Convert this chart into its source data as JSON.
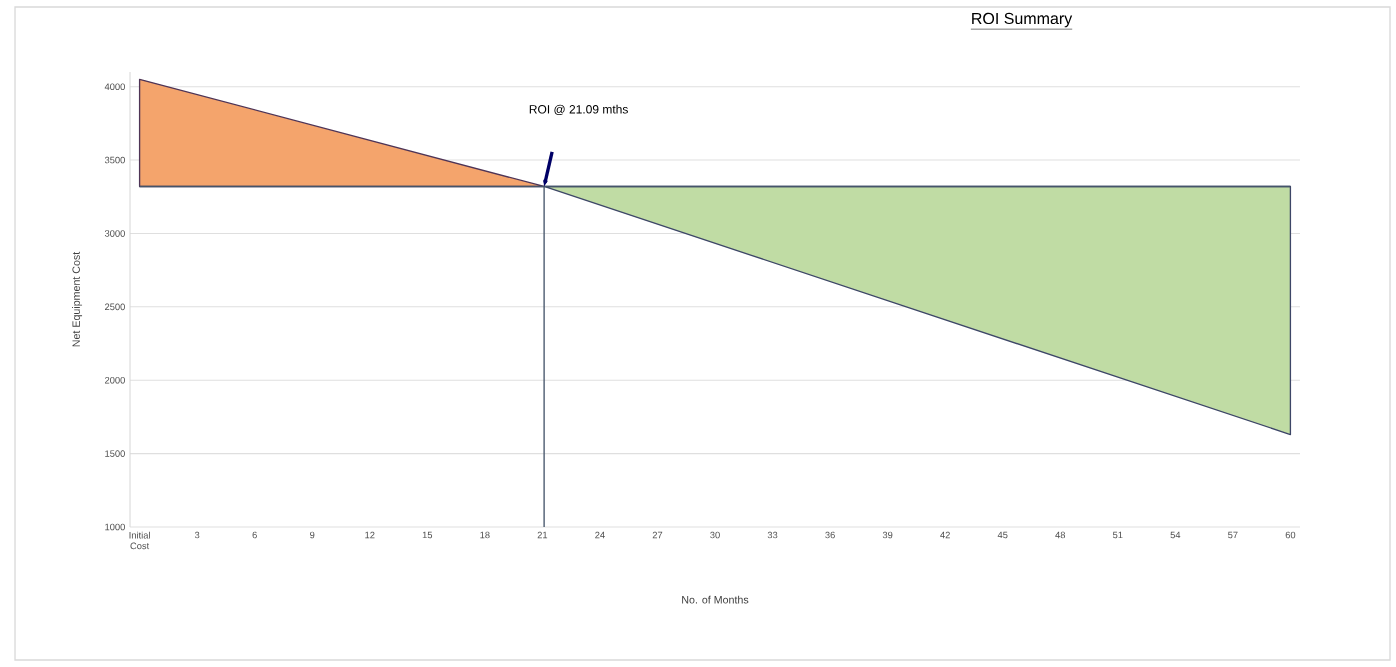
{
  "chart_data": {
    "type": "area",
    "title": "ROI Summary",
    "xlabel": "No. of Months",
    "ylabel": "Net Equipment Cost",
    "series": [
      {
        "color": "#f4a46c",
        "x": [
          0,
          21.09
        ],
        "values": [
          4050,
          3320
        ]
      },
      {
        "color": "#c0dca4",
        "x": [
          21.09,
          60
        ],
        "values": [
          3320,
          1630
        ]
      }
    ],
    "xlim": [
      -0.5,
      60.5
    ],
    "xticks": [
      {
        "value": 0,
        "label": "Initial Cost"
      },
      3,
      6,
      9,
      12,
      15,
      18,
      21,
      24,
      27,
      30,
      33,
      36,
      39,
      42,
      45,
      48,
      51,
      54,
      57,
      60
    ],
    "ylim": [
      1000,
      4100
    ],
    "yticks": [
      1000,
      1500,
      2000,
      2500,
      3000,
      3500,
      4000
    ],
    "ref_lines": [
      {
        "axis": "y",
        "value": 3320,
        "color": "#44546a"
      },
      {
        "axis": "x",
        "value": 21.09,
        "color": "#44546a"
      }
    ],
    "annotations": [
      "ROI @ 21.09 mths"
    ],
    "grid": "y"
  }
}
